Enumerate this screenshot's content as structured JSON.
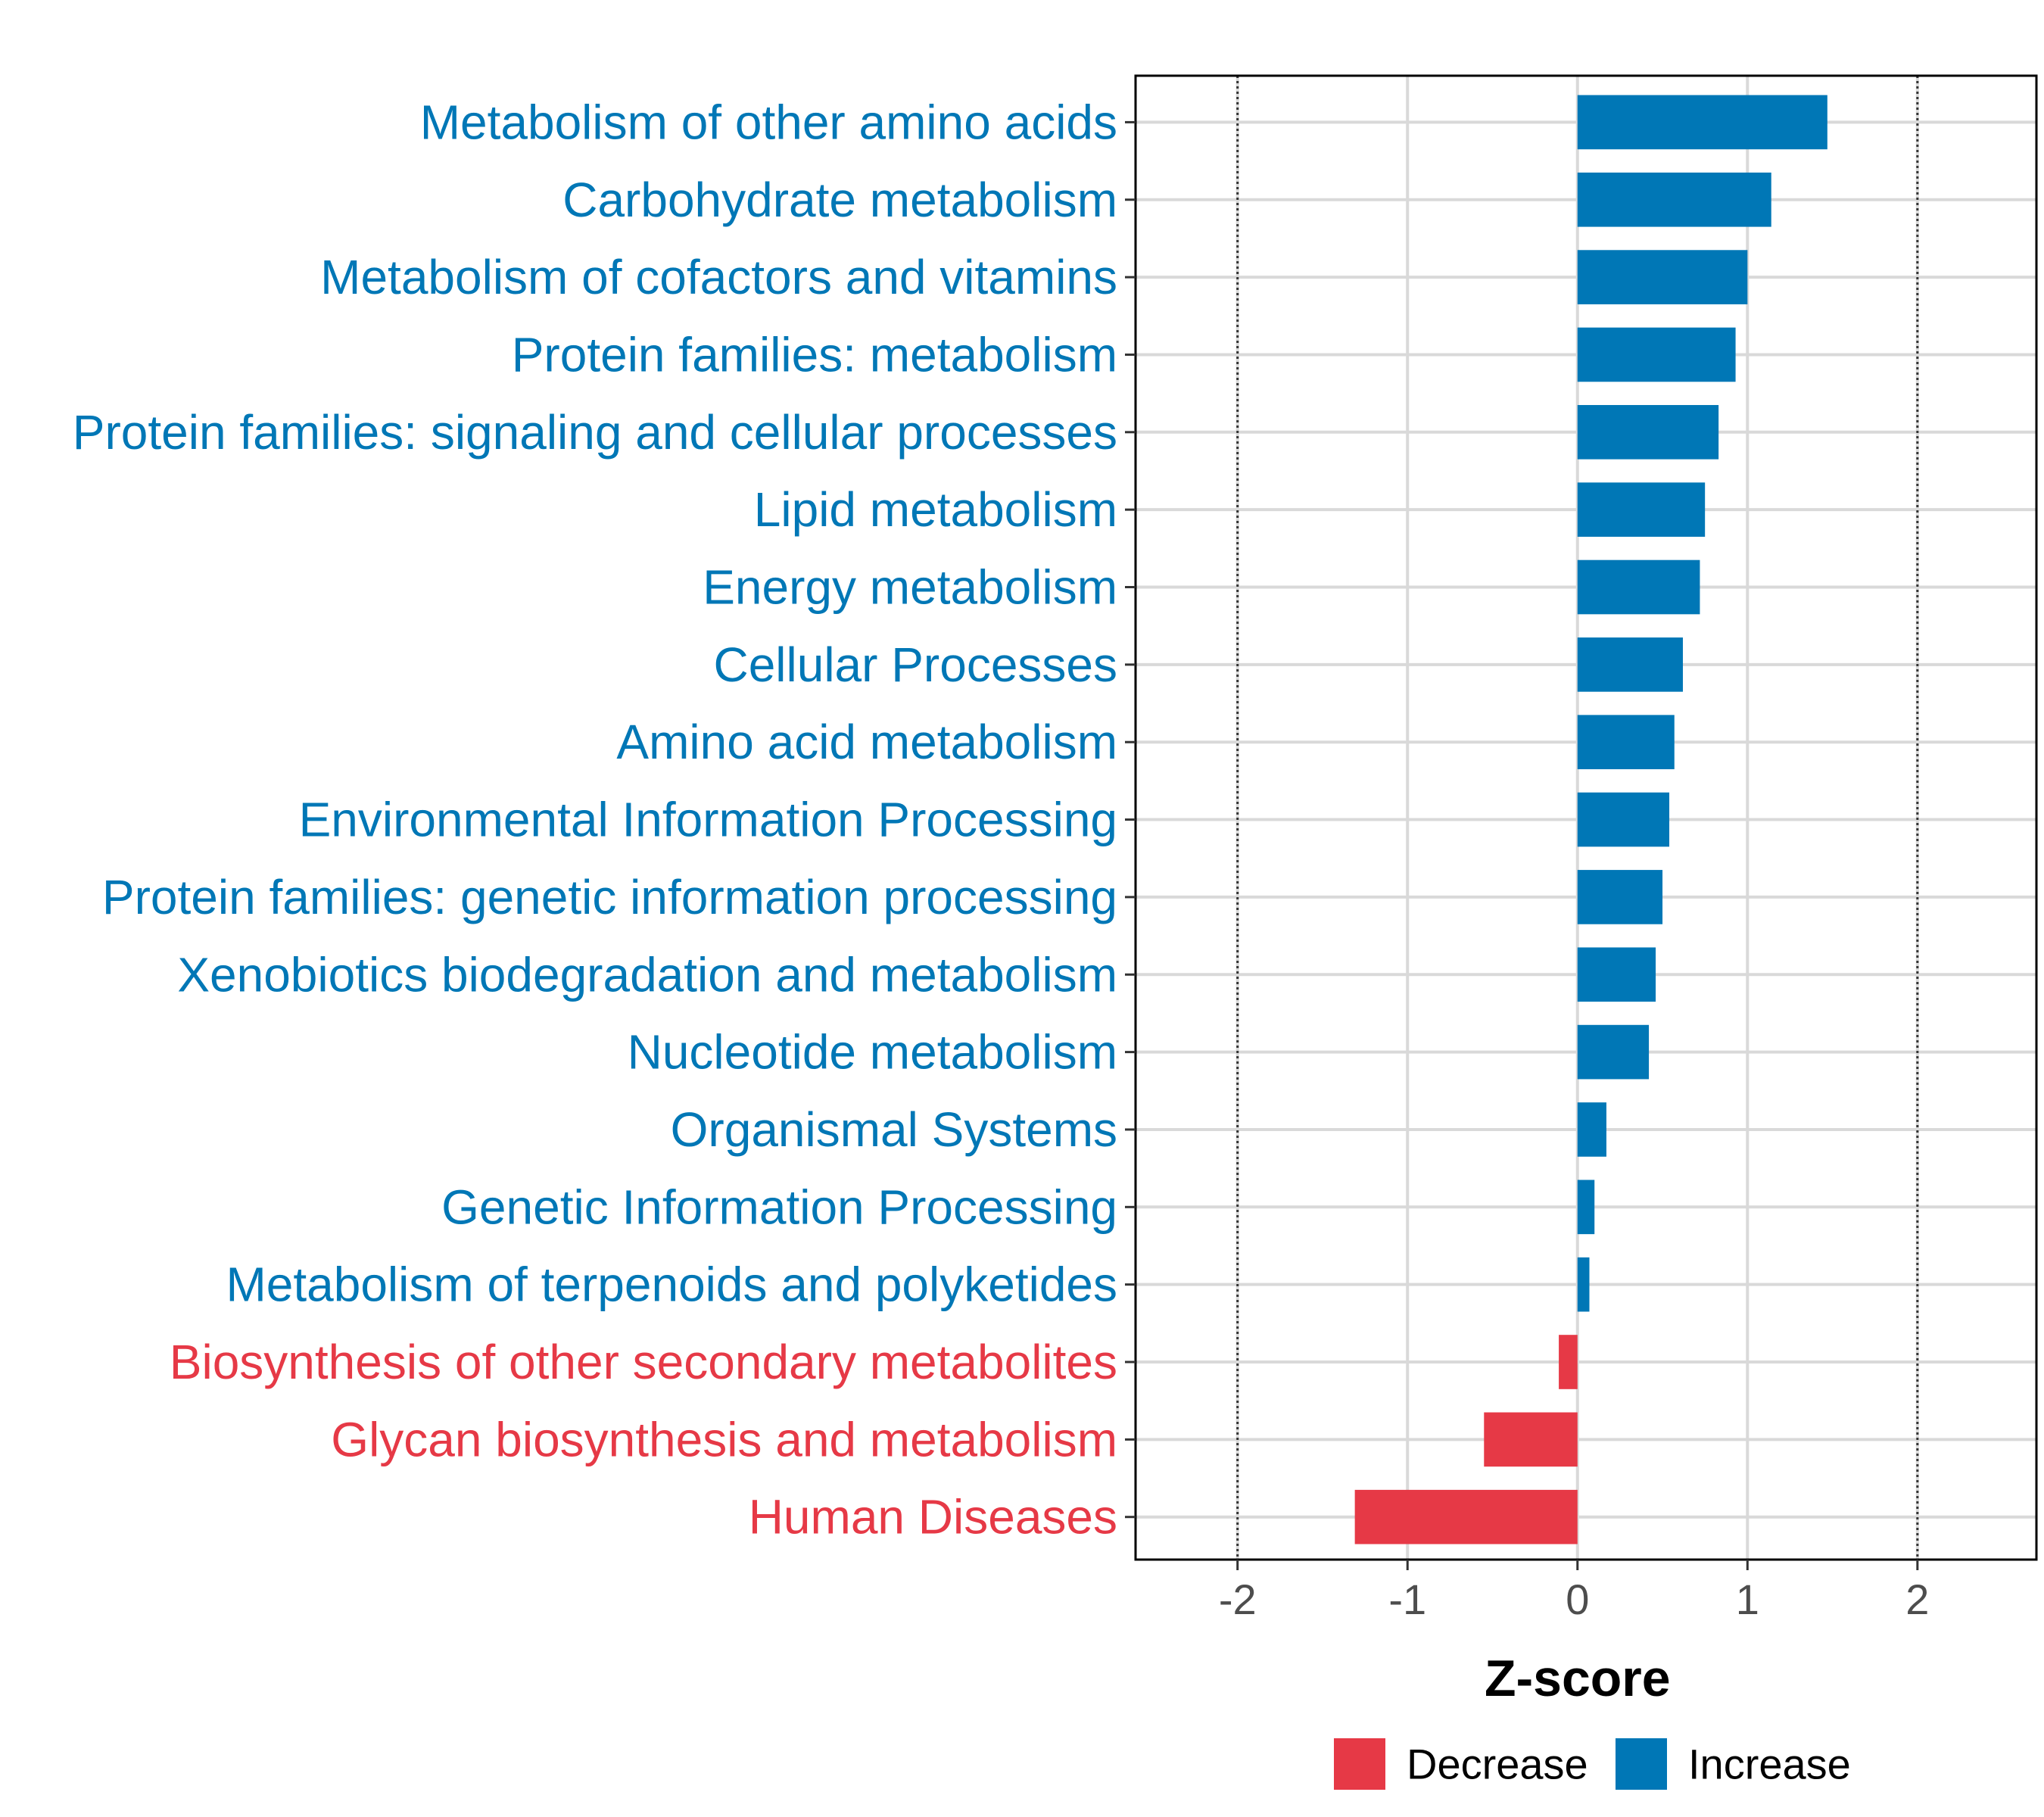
{
  "chart_data": {
    "type": "bar",
    "orientation": "horizontal",
    "title": "",
    "xlabel": "Z-score",
    "ylabel": "",
    "xlim": [
      -2.6,
      2.7
    ],
    "xticks": [
      -2,
      -1,
      0,
      1,
      2
    ],
    "reference_lines": [
      -2,
      2
    ],
    "grid": true,
    "legend_position": "bottom",
    "categories": [
      "Metabolism of other amino acids",
      "Carbohydrate metabolism",
      "Metabolism of cofactors and vitamins",
      "Protein families: metabolism",
      "Protein families: signaling and cellular processes",
      "Lipid metabolism",
      "Energy metabolism",
      "Cellular Processes",
      "Amino acid metabolism",
      "Environmental Information Processing",
      "Protein families: genetic information processing",
      "Xenobiotics biodegradation and metabolism",
      "Nucleotide metabolism",
      "Organismal Systems",
      "Genetic Information Processing",
      "Metabolism of terpenoids and polyketides",
      "Biosynthesis of other secondary metabolites",
      "Glycan biosynthesis and metabolism",
      "Human Diseases"
    ],
    "values": [
      1.47,
      1.14,
      1.0,
      0.93,
      0.83,
      0.75,
      0.72,
      0.62,
      0.57,
      0.54,
      0.5,
      0.46,
      0.42,
      0.17,
      0.1,
      0.07,
      -0.11,
      -0.55,
      -1.31
    ],
    "groups": [
      "Increase",
      "Increase",
      "Increase",
      "Increase",
      "Increase",
      "Increase",
      "Increase",
      "Increase",
      "Increase",
      "Increase",
      "Increase",
      "Increase",
      "Increase",
      "Increase",
      "Increase",
      "Increase",
      "Decrease",
      "Decrease",
      "Decrease"
    ],
    "legend": [
      {
        "name": "Decrease",
        "color": "#E63946"
      },
      {
        "name": "Increase",
        "color": "#0077B6"
      }
    ]
  }
}
